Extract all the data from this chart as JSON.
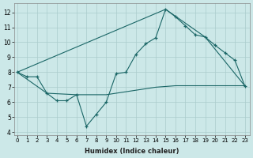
{
  "xlabel": "Humidex (Indice chaleur)",
  "x_ticks": [
    0,
    1,
    2,
    3,
    4,
    5,
    6,
    7,
    8,
    9,
    10,
    11,
    12,
    13,
    14,
    15,
    16,
    17,
    18,
    19,
    20,
    21,
    22,
    23
  ],
  "ylim": [
    3.8,
    12.6
  ],
  "xlim": [
    -0.3,
    23.5
  ],
  "yticks": [
    4,
    5,
    6,
    7,
    8,
    9,
    10,
    11,
    12
  ],
  "background_color": "#cce8e8",
  "grid_color": "#aacccc",
  "line_color": "#1a6666",
  "line1_x": [
    0,
    1,
    2,
    3,
    4,
    5,
    6,
    7,
    8,
    9,
    10,
    11,
    12,
    13,
    14,
    15,
    16,
    17,
    18,
    19,
    20,
    21,
    22,
    23
  ],
  "line1_y": [
    8.0,
    7.7,
    7.7,
    6.6,
    6.1,
    6.1,
    6.5,
    4.4,
    5.2,
    6.0,
    7.9,
    8.0,
    9.2,
    9.9,
    10.3,
    12.2,
    11.7,
    11.1,
    10.5,
    10.35,
    9.8,
    9.3,
    8.8,
    7.1
  ],
  "line2_x": [
    0,
    15,
    19,
    23
  ],
  "line2_y": [
    8.0,
    12.2,
    10.35,
    7.1
  ],
  "line3_x": [
    0,
    3,
    6,
    9,
    10,
    11,
    12,
    13,
    14,
    15,
    16,
    17,
    18,
    19,
    20,
    21,
    22,
    23
  ],
  "line3_y": [
    8.0,
    6.6,
    6.5,
    6.5,
    6.6,
    6.7,
    6.8,
    6.9,
    7.0,
    7.05,
    7.1,
    7.1,
    7.1,
    7.1,
    7.1,
    7.1,
    7.1,
    7.1
  ]
}
